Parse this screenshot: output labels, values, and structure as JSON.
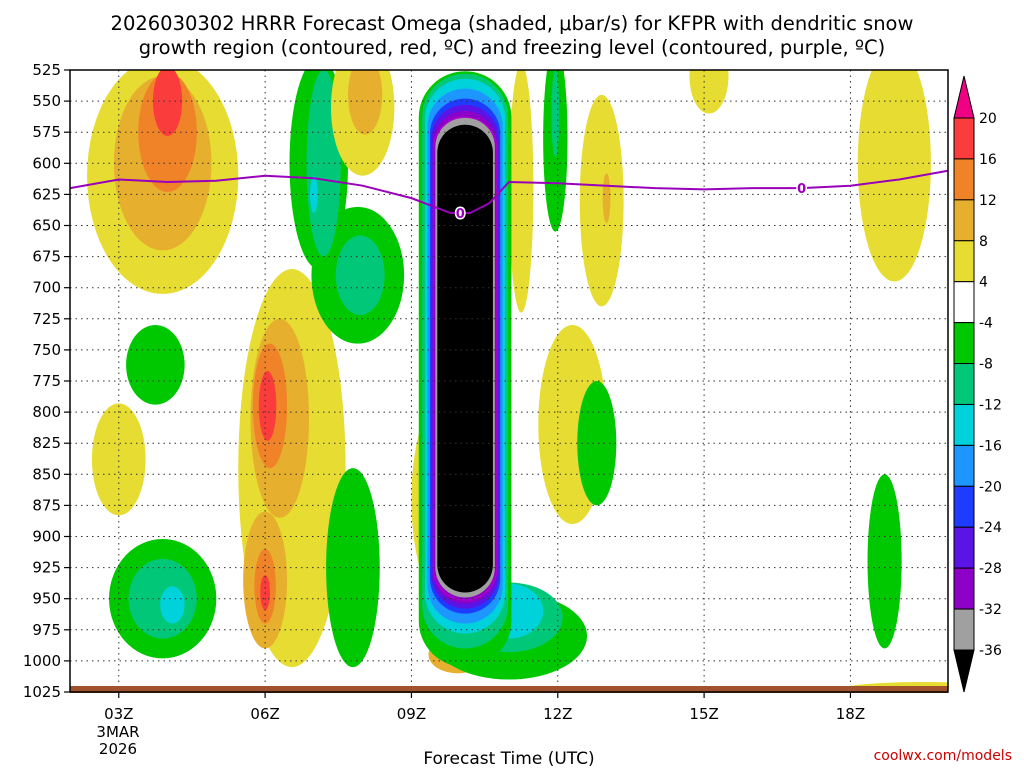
{
  "chart_data": {
    "type": "heatmap",
    "title_line1": "2026030302 HRRR Forecast Omega (shaded, μbar/s) for KFPR with dendritic snow",
    "title_line2": "growth region (contoured, red, ºC) and freezing level (contoured, purple, ºC)",
    "xlabel": "Forecast Time (UTC)",
    "credit": "coolwx.com/models",
    "date_label": [
      "3MAR",
      "2026"
    ],
    "x_ticks": [
      {
        "hour": 3,
        "label": "03Z"
      },
      {
        "hour": 6,
        "label": "06Z"
      },
      {
        "hour": 9,
        "label": "09Z"
      },
      {
        "hour": 12,
        "label": "12Z"
      },
      {
        "hour": 15,
        "label": "15Z"
      },
      {
        "hour": 18,
        "label": "18Z"
      }
    ],
    "x_range": [
      2,
      20
    ],
    "y_ticks": [
      525,
      550,
      575,
      600,
      625,
      650,
      675,
      700,
      725,
      750,
      775,
      800,
      825,
      850,
      875,
      900,
      925,
      950,
      975,
      1000,
      1025
    ],
    "y_range_hpa": [
      525,
      1025
    ],
    "colorbar": {
      "levels": [
        "-36",
        "-32",
        "-28",
        "-24",
        "-20",
        "-16",
        "-12",
        "-8",
        "-4",
        "4",
        "8",
        "12",
        "16",
        "20"
      ],
      "colors": [
        "#000000",
        "#a0a0a0",
        "#8c00c8",
        "#5a14e6",
        "#1e3cff",
        "#1e96ff",
        "#00d2dc",
        "#00c878",
        "#00c800",
        "#ffffff",
        "#e6dc32",
        "#e6af2d",
        "#f08228",
        "#fa3c3c",
        "#f00082"
      ]
    },
    "freezing_level": {
      "label": "0",
      "color": "#9900bb",
      "points": [
        [
          2.0,
          620
        ],
        [
          3.0,
          613
        ],
        [
          4.0,
          615
        ],
        [
          5.0,
          614
        ],
        [
          6.0,
          610
        ],
        [
          7.0,
          612
        ],
        [
          8.0,
          618
        ],
        [
          9.0,
          628
        ],
        [
          9.8,
          640
        ],
        [
          10.2,
          640
        ],
        [
          10.6,
          632
        ],
        [
          11.0,
          615
        ],
        [
          12.0,
          616
        ],
        [
          13.0,
          618
        ],
        [
          14.0,
          620
        ],
        [
          15.0,
          621
        ],
        [
          16.0,
          620
        ],
        [
          17.0,
          620
        ],
        [
          18.0,
          618
        ],
        [
          19.0,
          613
        ],
        [
          20.0,
          606
        ]
      ]
    },
    "fz_label_points": [
      [
        10.0,
        640
      ],
      [
        17.0,
        620
      ]
    ],
    "dgz_label": "0",
    "surface_color": "#a0522d",
    "shaded_regions": [
      {
        "level": "4",
        "color": "#e6dc32",
        "cx": 3.9,
        "cy": 610,
        "rx": 1.55,
        "ry": 95
      },
      {
        "level": "8",
        "color": "#e6af2d",
        "cx": 3.9,
        "cy": 600,
        "rx": 1.0,
        "ry": 70
      },
      {
        "level": "12",
        "color": "#f08228",
        "cx": 4.0,
        "cy": 575,
        "rx": 0.6,
        "ry": 48
      },
      {
        "level": "16",
        "color": "#fa3c3c",
        "cx": 4.0,
        "cy": 550,
        "rx": 0.3,
        "ry": 28
      },
      {
        "level": "4",
        "color": "#e6dc32",
        "cx": 3.0,
        "cy": 838,
        "rx": 0.55,
        "ry": 45
      },
      {
        "level": "-4",
        "color": "#00c800",
        "cx": 3.75,
        "cy": 762,
        "rx": 0.6,
        "ry": 32
      },
      {
        "level": "-4",
        "color": "#00c800",
        "cx": 3.9,
        "cy": 950,
        "rx": 1.1,
        "ry": 48
      },
      {
        "level": "-8",
        "color": "#00c878",
        "cx": 3.9,
        "cy": 950,
        "rx": 0.7,
        "ry": 32
      },
      {
        "level": "-12",
        "color": "#00d2dc",
        "cx": 4.1,
        "cy": 955,
        "rx": 0.25,
        "ry": 15
      },
      {
        "level": "4",
        "color": "#e6dc32",
        "cx": 6.55,
        "cy": 845,
        "rx": 1.1,
        "ry": 160
      },
      {
        "level": "8",
        "color": "#e6af2d",
        "cx": 6.3,
        "cy": 805,
        "rx": 0.6,
        "ry": 80
      },
      {
        "level": "12",
        "color": "#f08228",
        "cx": 6.1,
        "cy": 795,
        "rx": 0.35,
        "ry": 50
      },
      {
        "level": "16",
        "color": "#fa3c3c",
        "cx": 6.05,
        "cy": 795,
        "rx": 0.18,
        "ry": 28
      },
      {
        "level": "8",
        "color": "#e6af2d",
        "cx": 6.0,
        "cy": 935,
        "rx": 0.45,
        "ry": 55
      },
      {
        "level": "12",
        "color": "#f08228",
        "cx": 6.0,
        "cy": 940,
        "rx": 0.22,
        "ry": 30
      },
      {
        "level": "16",
        "color": "#fa3c3c",
        "cx": 6.0,
        "cy": 945,
        "rx": 0.1,
        "ry": 14
      },
      {
        "level": "-4",
        "color": "#00c800",
        "cx": 7.1,
        "cy": 600,
        "rx": 0.6,
        "ry": 85
      },
      {
        "level": "-4",
        "color": "#00c800",
        "cx": 7.9,
        "cy": 690,
        "rx": 0.95,
        "ry": 55
      },
      {
        "level": "-8",
        "color": "#00c878",
        "cx": 7.2,
        "cy": 600,
        "rx": 0.35,
        "ry": 75
      },
      {
        "level": "-8",
        "color": "#00c878",
        "cx": 7.95,
        "cy": 690,
        "rx": 0.5,
        "ry": 32
      },
      {
        "level": "-12",
        "color": "#00d2dc",
        "cx": 7.0,
        "cy": 625,
        "rx": 0.08,
        "ry": 15
      },
      {
        "level": "4",
        "color": "#e6dc32",
        "cx": 8.0,
        "cy": 555,
        "rx": 0.65,
        "ry": 55
      },
      {
        "level": "8",
        "color": "#e6af2d",
        "cx": 8.05,
        "cy": 545,
        "rx": 0.35,
        "ry": 32
      },
      {
        "level": "-4",
        "color": "#00c800",
        "cx": 7.8,
        "cy": 925,
        "rx": 0.55,
        "ry": 80
      },
      {
        "level": "4",
        "color": "#e6dc32",
        "cx": 9.8,
        "cy": 870,
        "rx": 0.8,
        "ry": 90
      },
      {
        "level": "8",
        "color": "#e6af2d",
        "cx": 9.95,
        "cy": 995,
        "rx": 0.6,
        "ry": 15
      },
      {
        "level": "12",
        "color": "#f08228",
        "cx": 10.0,
        "cy": 995,
        "rx": 0.3,
        "ry": 10
      },
      {
        "level": "16",
        "color": "#fa3c3c",
        "cx": 10.0,
        "cy": 995,
        "rx": 0.15,
        "ry": 7
      },
      {
        "level": "20",
        "color": "#f00082",
        "cx": 10.0,
        "cy": 995,
        "rx": 0.06,
        "ry": 5
      },
      {
        "level": "4",
        "color": "#e6dc32",
        "cx": 12.3,
        "cy": 810,
        "rx": 0.7,
        "ry": 80
      },
      {
        "level": "4",
        "color": "#e6dc32",
        "cx": 11.25,
        "cy": 620,
        "rx": 0.25,
        "ry": 100
      },
      {
        "level": "4",
        "color": "#e6dc32",
        "cx": 12.9,
        "cy": 630,
        "rx": 0.45,
        "ry": 85
      },
      {
        "level": "8",
        "color": "#e6af2d",
        "cx": 13.0,
        "cy": 628,
        "rx": 0.08,
        "ry": 20
      },
      {
        "level": "-4",
        "color": "#00c800",
        "cx": 11.95,
        "cy": 580,
        "rx": 0.25,
        "ry": 75
      },
      {
        "level": "-8",
        "color": "#00c878",
        "cx": 11.95,
        "cy": 560,
        "rx": 0.08,
        "ry": 35
      },
      {
        "level": "-4",
        "color": "#00c800",
        "cx": 12.8,
        "cy": 825,
        "rx": 0.4,
        "ry": 50
      },
      {
        "level": "4",
        "color": "#e6dc32",
        "cx": 15.1,
        "cy": 530,
        "rx": 0.4,
        "ry": 30
      },
      {
        "level": "4",
        "color": "#e6dc32",
        "cx": 18.9,
        "cy": 600,
        "rx": 0.75,
        "ry": 95
      },
      {
        "level": "-4",
        "color": "#00c800",
        "cx": 18.7,
        "cy": 920,
        "rx": 0.35,
        "ry": 70
      },
      {
        "level": "4",
        "color": "#e6dc32",
        "cx": 19.5,
        "cy": 1022,
        "rx": 1.6,
        "ry": 5
      },
      {
        "level": "-4",
        "color": "#00c800",
        "cx": 11.0,
        "cy": 980,
        "rx": 1.6,
        "ry": 35
      },
      {
        "level": "-8",
        "color": "#00c878",
        "cx": 11.0,
        "cy": 965,
        "rx": 1.1,
        "ry": 28
      },
      {
        "level": "-12",
        "color": "#00d2dc",
        "cx": 11.0,
        "cy": 960,
        "rx": 0.7,
        "ry": 22
      }
    ],
    "updraft_core": {
      "center_hour": 10.1,
      "bands": [
        {
          "level": "-4",
          "color": "#00c800",
          "x_half": 0.95,
          "top": 526,
          "bottom": 1005
        },
        {
          "level": "-8",
          "color": "#00c878",
          "x_half": 0.88,
          "top": 528,
          "bottom": 990
        },
        {
          "level": "-12",
          "color": "#00d2dc",
          "x_half": 0.82,
          "top": 532,
          "bottom": 978
        },
        {
          "level": "-16",
          "color": "#1e96ff",
          "x_half": 0.77,
          "top": 540,
          "bottom": 970
        },
        {
          "level": "-20",
          "color": "#1e3cff",
          "x_half": 0.72,
          "top": 548,
          "bottom": 962
        },
        {
          "level": "-24",
          "color": "#5a14e6",
          "x_half": 0.69,
          "top": 553,
          "bottom": 958
        },
        {
          "level": "-28",
          "color": "#8c00c8",
          "x_half": 0.65,
          "top": 558,
          "bottom": 954
        },
        {
          "level": "-32",
          "color": "#a0a0a0",
          "x_half": 0.61,
          "top": 563,
          "bottom": 949
        },
        {
          "level": "-36",
          "color": "#000000",
          "x_half": 0.57,
          "top": 569,
          "bottom": 945
        }
      ]
    }
  }
}
